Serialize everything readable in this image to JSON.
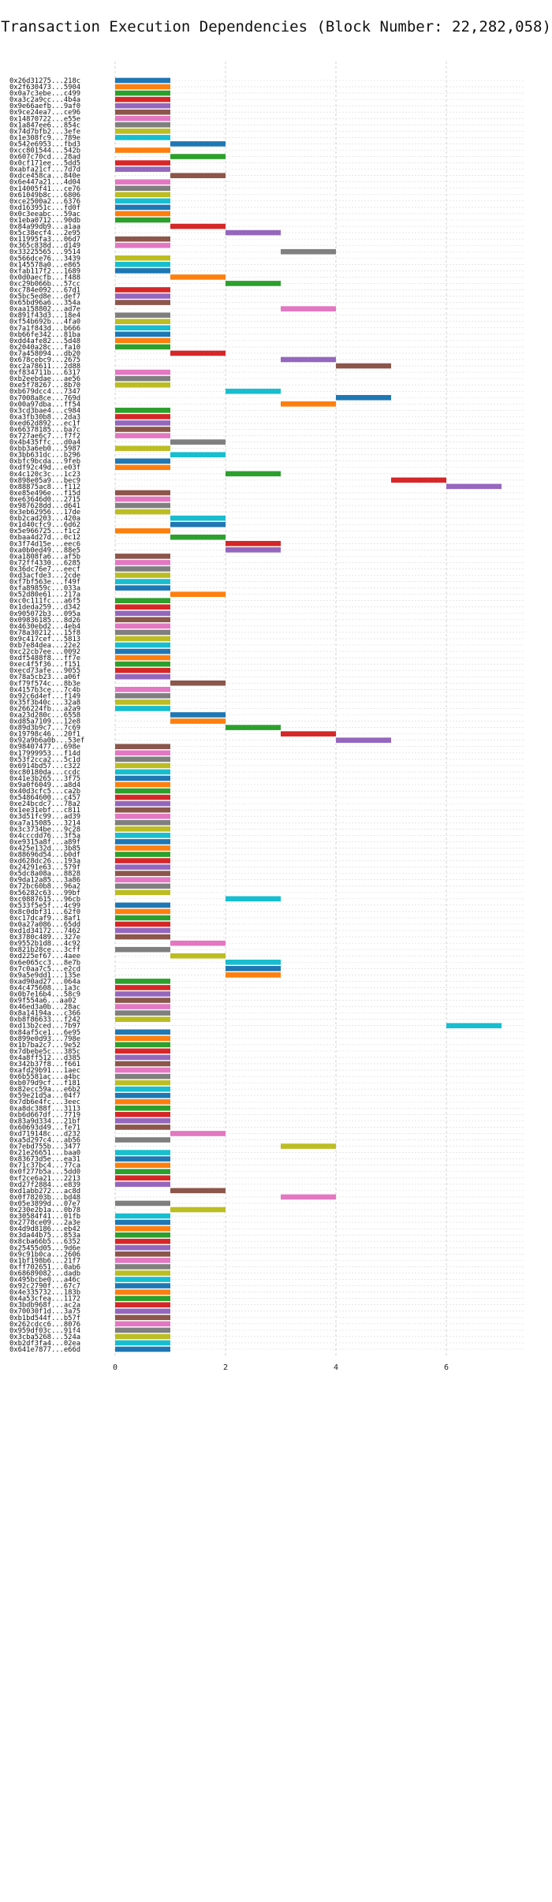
{
  "chart_data": {
    "type": "bar",
    "orientation": "horizontal-gantt",
    "title": "Transaction Execution Dependencies (Block Number: 22,282,058)",
    "xlabel": "",
    "ylabel": "",
    "x_ticks": [
      0,
      2,
      4,
      6
    ],
    "xlim": [
      0,
      7.4
    ],
    "grid": true,
    "colors": [
      "#1f77b4",
      "#ff7f0e",
      "#2ca02c",
      "#d62728",
      "#9467bd",
      "#8c564b",
      "#e377c2",
      "#7f7f7f",
      "#bcbd22",
      "#17becf"
    ],
    "transactions": [
      {
        "label": "0x26d31275...218c",
        "start": 0,
        "end": 1
      },
      {
        "label": "0x2f630473...5904",
        "start": 0,
        "end": 1
      },
      {
        "label": "0x0a7c3ebe...c499",
        "start": 0,
        "end": 1
      },
      {
        "label": "0xa3c2a9cc...4b4a",
        "start": 0,
        "end": 1
      },
      {
        "label": "0x9e66aefb...9af0",
        "start": 0,
        "end": 1
      },
      {
        "label": "0x9ce24ea7...ce96",
        "start": 0,
        "end": 1
      },
      {
        "label": "0x14870722...e55e",
        "start": 0,
        "end": 1
      },
      {
        "label": "0x1a847ee6...854c",
        "start": 0,
        "end": 1
      },
      {
        "label": "0x74d7bfb2...3efe",
        "start": 0,
        "end": 1
      },
      {
        "label": "0x1e308fc9...789e",
        "start": 0,
        "end": 1
      },
      {
        "label": "0x542e6953...fbd3",
        "start": 1,
        "end": 2
      },
      {
        "label": "0xcc801544...542b",
        "start": 0,
        "end": 1
      },
      {
        "label": "0x607c70cd...28ad",
        "start": 1,
        "end": 2
      },
      {
        "label": "0x0cf171ee...5dd5",
        "start": 0,
        "end": 1
      },
      {
        "label": "0xabfa21cf...7d7d",
        "start": 0,
        "end": 1
      },
      {
        "label": "0xdce458ca...840e",
        "start": 1,
        "end": 2
      },
      {
        "label": "0x6e447a21...4d04",
        "start": 0,
        "end": 1
      },
      {
        "label": "0x14005f41...ce76",
        "start": 0,
        "end": 1
      },
      {
        "label": "0x61049b8c...6806",
        "start": 0,
        "end": 1
      },
      {
        "label": "0xce2500a2...6376",
        "start": 0,
        "end": 1
      },
      {
        "label": "0xd163951c...fd0f",
        "start": 0,
        "end": 1
      },
      {
        "label": "0x0c3eeabc...59ac",
        "start": 0,
        "end": 1
      },
      {
        "label": "0x1eba0712...90db",
        "start": 0,
        "end": 1
      },
      {
        "label": "0x84a99db9...a1aa",
        "start": 1,
        "end": 2
      },
      {
        "label": "0x5c38ecf4...2e95",
        "start": 2,
        "end": 3
      },
      {
        "label": "0x11995fa3...06d7",
        "start": 0,
        "end": 1
      },
      {
        "label": "0x365c838d...d149",
        "start": 0,
        "end": 1
      },
      {
        "label": "0x33225565...9514",
        "start": 3,
        "end": 4
      },
      {
        "label": "0x566dce76...3439",
        "start": 0,
        "end": 1
      },
      {
        "label": "0x145578a0...e865",
        "start": 0,
        "end": 1
      },
      {
        "label": "0xfab117f2...1689",
        "start": 0,
        "end": 1
      },
      {
        "label": "0x0d0aecfb...f488",
        "start": 1,
        "end": 2
      },
      {
        "label": "0xc29b066b...57cc",
        "start": 2,
        "end": 3
      },
      {
        "label": "0xc784e092...67d1",
        "start": 0,
        "end": 1
      },
      {
        "label": "0x5bc5ed8e...def7",
        "start": 0,
        "end": 1
      },
      {
        "label": "0x65bd96a6...354a",
        "start": 0,
        "end": 1
      },
      {
        "label": "0xaa158802...ad7e",
        "start": 3,
        "end": 4
      },
      {
        "label": "0x891f43d3...18e4",
        "start": 0,
        "end": 1
      },
      {
        "label": "0xf54b692b...4fa0",
        "start": 0,
        "end": 1
      },
      {
        "label": "0x7a1f843d...b666",
        "start": 0,
        "end": 1
      },
      {
        "label": "0xb66fe342...81ba",
        "start": 0,
        "end": 1
      },
      {
        "label": "0xdd4afe82...5d48",
        "start": 0,
        "end": 1
      },
      {
        "label": "0x2040a28c...fa10",
        "start": 0,
        "end": 1
      },
      {
        "label": "0x7a458094...db20",
        "start": 1,
        "end": 2
      },
      {
        "label": "0x678cebc9...2675",
        "start": 3,
        "end": 4
      },
      {
        "label": "0xc2a78611...2d88",
        "start": 4,
        "end": 5
      },
      {
        "label": "0xf834711b...6317",
        "start": 0,
        "end": 1
      },
      {
        "label": "0xb2eebdae...ae56",
        "start": 0,
        "end": 1
      },
      {
        "label": "0xe5f78267...8b70",
        "start": 0,
        "end": 1
      },
      {
        "label": "0xb679dcc4...7347",
        "start": 2,
        "end": 3
      },
      {
        "label": "0x7008a8ce...769d",
        "start": 4,
        "end": 5
      },
      {
        "label": "0x00a97dba...ff54",
        "start": 3,
        "end": 4
      },
      {
        "label": "0x3cd3bae4...c984",
        "start": 0,
        "end": 1
      },
      {
        "label": "0xa3fb30b8...2da3",
        "start": 0,
        "end": 1
      },
      {
        "label": "0xed62d892...ec1f",
        "start": 0,
        "end": 1
      },
      {
        "label": "0x66378185...ba7c",
        "start": 0,
        "end": 1
      },
      {
        "label": "0x727ae6c7...f7f2",
        "start": 0,
        "end": 1
      },
      {
        "label": "0x4b435ffc...d0a4",
        "start": 1,
        "end": 2
      },
      {
        "label": "0xbb3a6eb0...5987",
        "start": 0,
        "end": 1
      },
      {
        "label": "0x3bb631dc...b296",
        "start": 1,
        "end": 2
      },
      {
        "label": "0xbfc9bcda...9feb",
        "start": 0,
        "end": 1
      },
      {
        "label": "0xdf92c49d...e03f",
        "start": 0,
        "end": 1
      },
      {
        "label": "0x4c120c3c...1c23",
        "start": 2,
        "end": 3
      },
      {
        "label": "0x898e05a9...bec9",
        "start": 5,
        "end": 6
      },
      {
        "label": "0x88875ac8...f112",
        "start": 6,
        "end": 7
      },
      {
        "label": "0xe85e496e...f15d",
        "start": 0,
        "end": 1
      },
      {
        "label": "0xe63646d0...2715",
        "start": 0,
        "end": 1
      },
      {
        "label": "0x987628dd...d641",
        "start": 0,
        "end": 1
      },
      {
        "label": "0x3eb62956...17de",
        "start": 0,
        "end": 1
      },
      {
        "label": "0xb2cad203...420a",
        "start": 1,
        "end": 2
      },
      {
        "label": "0x1d40cfc9...6d62",
        "start": 1,
        "end": 2
      },
      {
        "label": "0x5e966725...f1c2",
        "start": 0,
        "end": 1
      },
      {
        "label": "0xbaa4d27d...0c12",
        "start": 1,
        "end": 2
      },
      {
        "label": "0x3f74d15e...eec6",
        "start": 2,
        "end": 3
      },
      {
        "label": "0xa0b0ed49...88e5",
        "start": 2,
        "end": 3
      },
      {
        "label": "0xa1808fa6...af5b",
        "start": 0,
        "end": 1
      },
      {
        "label": "0x72ff4330...6285",
        "start": 0,
        "end": 1
      },
      {
        "label": "0x36dc76e7...eecf",
        "start": 0,
        "end": 1
      },
      {
        "label": "0xd3acfde3...2cde",
        "start": 0,
        "end": 1
      },
      {
        "label": "0xf7bf563e...f49f",
        "start": 0,
        "end": 1
      },
      {
        "label": "0xfa89859c...033a",
        "start": 0,
        "end": 1
      },
      {
        "label": "0x52d80e61...217a",
        "start": 1,
        "end": 2
      },
      {
        "label": "0xc0c111fc...a6f5",
        "start": 0,
        "end": 1
      },
      {
        "label": "0x1deda259...d342",
        "start": 0,
        "end": 1
      },
      {
        "label": "0x905072b3...095a",
        "start": 0,
        "end": 1
      },
      {
        "label": "0x09836185...8d26",
        "start": 0,
        "end": 1
      },
      {
        "label": "0x4630ebd2...4eb4",
        "start": 0,
        "end": 1
      },
      {
        "label": "0x78a30212...15f8",
        "start": 0,
        "end": 1
      },
      {
        "label": "0x9c417cef...5813",
        "start": 0,
        "end": 1
      },
      {
        "label": "0xb7e84dea...22e2",
        "start": 0,
        "end": 1
      },
      {
        "label": "0xc22cb7ee...0092",
        "start": 0,
        "end": 1
      },
      {
        "label": "0xdf5488f8...ff7e",
        "start": 0,
        "end": 1
      },
      {
        "label": "0xec4f5f36...f151",
        "start": 0,
        "end": 1
      },
      {
        "label": "0xecd73afe...9055",
        "start": 0,
        "end": 1
      },
      {
        "label": "0x78a5cb23...a06f",
        "start": 0,
        "end": 1
      },
      {
        "label": "0xf79f574c...8b3e",
        "start": 1,
        "end": 2
      },
      {
        "label": "0x4157b3ce...7c4b",
        "start": 0,
        "end": 1
      },
      {
        "label": "0x92c6d4ef...f149",
        "start": 0,
        "end": 1
      },
      {
        "label": "0x35f3b40c...32a8",
        "start": 0,
        "end": 1
      },
      {
        "label": "0x266224fb...a2a9",
        "start": 0,
        "end": 1
      },
      {
        "label": "0xa23d280c...6558",
        "start": 1,
        "end": 2
      },
      {
        "label": "0xd85a7109...12e8",
        "start": 1,
        "end": 2
      },
      {
        "label": "0x89d3b9c7...7c69",
        "start": 2,
        "end": 3
      },
      {
        "label": "0x19798c46...20f1",
        "start": 3,
        "end": 4
      },
      {
        "label": "0x92a9b6a0b...53ef",
        "start": 4,
        "end": 5
      },
      {
        "label": "0x98407477...698e",
        "start": 0,
        "end": 1
      },
      {
        "label": "0x17999953...f14d",
        "start": 0,
        "end": 1
      },
      {
        "label": "0x53f2cca2...5c1d",
        "start": 0,
        "end": 1
      },
      {
        "label": "0x6914bd57...c322",
        "start": 0,
        "end": 1
      },
      {
        "label": "0xc80180da...ccdc",
        "start": 0,
        "end": 1
      },
      {
        "label": "0x41e3b265...3f75",
        "start": 0,
        "end": 1
      },
      {
        "label": "0x9a0f6049...a8d4",
        "start": 0,
        "end": 1
      },
      {
        "label": "0x40d3cfc5...ca2b",
        "start": 0,
        "end": 1
      },
      {
        "label": "0x54864600...c457",
        "start": 0,
        "end": 1
      },
      {
        "label": "0xe24bcdc7...78a2",
        "start": 0,
        "end": 1
      },
      {
        "label": "0x1ee31ebf...c811",
        "start": 0,
        "end": 1
      },
      {
        "label": "0x3d51fc99...ad39",
        "start": 0,
        "end": 1
      },
      {
        "label": "0xa7a15085...3214",
        "start": 0,
        "end": 1
      },
      {
        "label": "0x3c3734be...9c28",
        "start": 0,
        "end": 1
      },
      {
        "label": "0x4cccdd76...3f5a",
        "start": 0,
        "end": 1
      },
      {
        "label": "0xe9315a8f...a89f",
        "start": 0,
        "end": 1
      },
      {
        "label": "0x425e132d...3b85",
        "start": 0,
        "end": 1
      },
      {
        "label": "0x88696d54...b0df",
        "start": 0,
        "end": 1
      },
      {
        "label": "0xd628dc26...193a",
        "start": 0,
        "end": 1
      },
      {
        "label": "0x24291e63...579f",
        "start": 0,
        "end": 1
      },
      {
        "label": "0x5dc8a08a...8828",
        "start": 0,
        "end": 1
      },
      {
        "label": "0x9da12a85...3a86",
        "start": 0,
        "end": 1
      },
      {
        "label": "0x72bc60b8...96a2",
        "start": 0,
        "end": 1
      },
      {
        "label": "0x56282c63...99bf",
        "start": 0,
        "end": 1
      },
      {
        "label": "0xc0887615...96cb",
        "start": 2,
        "end": 3
      },
      {
        "label": "0x533f5e5f...4c99",
        "start": 0,
        "end": 1
      },
      {
        "label": "0x8c0dbf31...62f0",
        "start": 0,
        "end": 1
      },
      {
        "label": "0xc17dcaf9...8af1",
        "start": 0,
        "end": 1
      },
      {
        "label": "0x0a27a086...65dd",
        "start": 0,
        "end": 1
      },
      {
        "label": "0xd1d34172...7462",
        "start": 0,
        "end": 1
      },
      {
        "label": "0x3780c489...327e",
        "start": 0,
        "end": 1
      },
      {
        "label": "0x9552b1d8...4c92",
        "start": 1,
        "end": 2
      },
      {
        "label": "0x821b28ce...3cff",
        "start": 0,
        "end": 1
      },
      {
        "label": "0xd225ef67...4aee",
        "start": 1,
        "end": 2
      },
      {
        "label": "0x6e065cc3...8e7b",
        "start": 2,
        "end": 3
      },
      {
        "label": "0x7c0aa7c5...e2cd",
        "start": 2,
        "end": 3
      },
      {
        "label": "0x9a5e9dd1...135e",
        "start": 2,
        "end": 3
      },
      {
        "label": "0xad90ad27...064a",
        "start": 0,
        "end": 1
      },
      {
        "label": "0x4c475608...1a3c",
        "start": 0,
        "end": 1
      },
      {
        "label": "0x0b7e16b4...58c9",
        "start": 0,
        "end": 1
      },
      {
        "label": "0x9f554a6...aa02",
        "start": 0,
        "end": 1
      },
      {
        "label": "0x46ed3a0b...28ac",
        "start": 0,
        "end": 1
      },
      {
        "label": "0x8a14194a...c366",
        "start": 0,
        "end": 1
      },
      {
        "label": "0xb8f86633...f242",
        "start": 0,
        "end": 1
      },
      {
        "label": "0xd13b2ced...7b97",
        "start": 6,
        "end": 7
      },
      {
        "label": "0x84af5ce1...6e95",
        "start": 0,
        "end": 1
      },
      {
        "label": "0x899e0d93...798e",
        "start": 0,
        "end": 1
      },
      {
        "label": "0x1b7ba2c7...9e52",
        "start": 0,
        "end": 1
      },
      {
        "label": "0x7dbebe5c...385c",
        "start": 0,
        "end": 1
      },
      {
        "label": "0x4a8ff512...d385",
        "start": 0,
        "end": 1
      },
      {
        "label": "0x342b37f8...f661",
        "start": 0,
        "end": 1
      },
      {
        "label": "0xafd29b91...1aec",
        "start": 0,
        "end": 1
      },
      {
        "label": "0x6b5581ac...a4bc",
        "start": 0,
        "end": 1
      },
      {
        "label": "0xb079d9cf...f181",
        "start": 0,
        "end": 1
      },
      {
        "label": "0x82ecc59a...e6b2",
        "start": 0,
        "end": 1
      },
      {
        "label": "0x59e21d5a...04f7",
        "start": 0,
        "end": 1
      },
      {
        "label": "0x7db6e4fc...3eec",
        "start": 0,
        "end": 1
      },
      {
        "label": "0xa8dc388f...3113",
        "start": 0,
        "end": 1
      },
      {
        "label": "0xb6d667df...7719",
        "start": 0,
        "end": 1
      },
      {
        "label": "0x83a9d334...21bf",
        "start": 0,
        "end": 1
      },
      {
        "label": "0x60693d49...fe71",
        "start": 0,
        "end": 1
      },
      {
        "label": "0xd719148c...d232",
        "start": 1,
        "end": 2
      },
      {
        "label": "0xa5d297c4...ab56",
        "start": 0,
        "end": 1
      },
      {
        "label": "0x7ebd755b...3477",
        "start": 3,
        "end": 4
      },
      {
        "label": "0x21e26651...baa0",
        "start": 0,
        "end": 1
      },
      {
        "label": "0x83673d5e...ea31",
        "start": 0,
        "end": 1
      },
      {
        "label": "0x71c37bc4...77ca",
        "start": 0,
        "end": 1
      },
      {
        "label": "0x0f277b5a...5dd0",
        "start": 0,
        "end": 1
      },
      {
        "label": "0xf2ce6a21...2213",
        "start": 0,
        "end": 1
      },
      {
        "label": "0xd27f2884...e839",
        "start": 0,
        "end": 1
      },
      {
        "label": "0xd1abb272...ac8d",
        "start": 1,
        "end": 2
      },
      {
        "label": "0x0f78203b...bd48",
        "start": 3,
        "end": 4
      },
      {
        "label": "0x05e3899d...07e7",
        "start": 0,
        "end": 1
      },
      {
        "label": "0x230e2b1a...0b78",
        "start": 1,
        "end": 2
      },
      {
        "label": "0x30584f41...01fb",
        "start": 0,
        "end": 1
      },
      {
        "label": "0x2778ce09...2a3e",
        "start": 0,
        "end": 1
      },
      {
        "label": "0x4d9d8186...eb42",
        "start": 0,
        "end": 1
      },
      {
        "label": "0x3da44b75...853a",
        "start": 0,
        "end": 1
      },
      {
        "label": "0x8cba66b5...6352",
        "start": 0,
        "end": 1
      },
      {
        "label": "0x25455d05...9d6e",
        "start": 0,
        "end": 1
      },
      {
        "label": "0x9c91b0ca...2606",
        "start": 0,
        "end": 1
      },
      {
        "label": "0x1bf198b6...21f7",
        "start": 0,
        "end": 1
      },
      {
        "label": "0xff702651...0ab6",
        "start": 0,
        "end": 1
      },
      {
        "label": "0x68689082...dadb",
        "start": 0,
        "end": 1
      },
      {
        "label": "0x495bcbe0...a46c",
        "start": 0,
        "end": 1
      },
      {
        "label": "0x92c2790f...67c7",
        "start": 0,
        "end": 1
      },
      {
        "label": "0x4e335732...183b",
        "start": 0,
        "end": 1
      },
      {
        "label": "0x4a53cfea...1172",
        "start": 0,
        "end": 1
      },
      {
        "label": "0x3bdb968f...ac2a",
        "start": 0,
        "end": 1
      },
      {
        "label": "0x70030f1d...3a75",
        "start": 0,
        "end": 1
      },
      {
        "label": "0xb1bd544f...b57f",
        "start": 0,
        "end": 1
      },
      {
        "label": "0x262cdcc6...8076",
        "start": 0,
        "end": 1
      },
      {
        "label": "0x959df03c...91f4",
        "start": 0,
        "end": 1
      },
      {
        "label": "0x3cba5268...524a",
        "start": 0,
        "end": 1
      },
      {
        "label": "0xb2df3fa4...02ea",
        "start": 0,
        "end": 1
      },
      {
        "label": "0x641e7877...e66d",
        "start": 0,
        "end": 1
      }
    ]
  }
}
